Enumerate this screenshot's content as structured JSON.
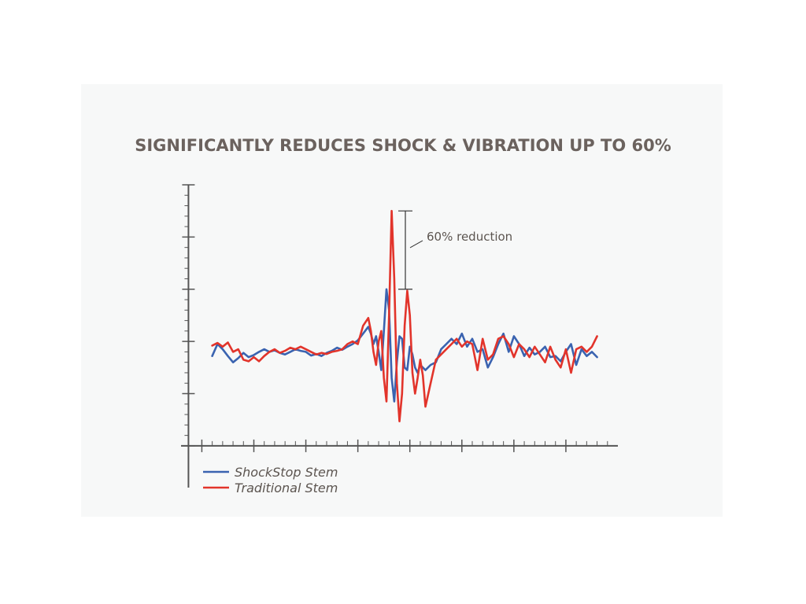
{
  "chart_data": {
    "type": "line",
    "title": "SIGNIFICANTLY REDUCES SHOCK & VIBRATION UP TO 60%",
    "annotation": "60% reduction",
    "x": [
      0.2,
      0.3,
      0.4,
      0.5,
      0.6,
      0.7,
      0.8,
      0.9,
      1.0,
      1.1,
      1.2,
      1.3,
      1.4,
      1.5,
      1.6,
      1.7,
      1.8,
      1.9,
      2.0,
      2.1,
      2.2,
      2.3,
      2.4,
      2.5,
      2.6,
      2.7,
      2.8,
      2.9,
      3.0,
      3.1,
      3.2,
      3.25,
      3.3,
      3.35,
      3.4,
      3.45,
      3.5,
      3.55,
      3.6,
      3.65,
      3.7,
      3.75,
      3.8,
      3.85,
      3.9,
      3.95,
      4.0,
      4.05,
      4.1,
      4.15,
      4.2,
      4.25,
      4.3,
      4.4,
      4.5,
      4.6,
      4.7,
      4.8,
      4.9,
      5.0,
      5.1,
      5.2,
      5.3,
      5.4,
      5.5,
      5.6,
      5.7,
      5.8,
      5.9,
      6.0,
      6.1,
      6.2,
      6.3,
      6.4,
      6.5,
      6.6,
      6.7,
      6.8,
      6.9,
      7.0,
      7.1,
      7.2,
      7.3,
      7.4,
      7.5,
      7.6
    ],
    "series": [
      {
        "name": "ShockStop Stem",
        "color": "#3a63b0",
        "values": [
          1.72,
          1.95,
          1.85,
          1.72,
          1.6,
          1.68,
          1.78,
          1.7,
          1.74,
          1.8,
          1.85,
          1.8,
          1.83,
          1.78,
          1.75,
          1.8,
          1.85,
          1.82,
          1.8,
          1.73,
          1.76,
          1.72,
          1.78,
          1.82,
          1.88,
          1.84,
          1.9,
          1.95,
          2.02,
          2.15,
          2.28,
          2.15,
          1.95,
          2.1,
          1.8,
          1.45,
          2.2,
          3.0,
          2.6,
          1.3,
          0.85,
          1.6,
          2.1,
          2.05,
          1.5,
          1.45,
          1.9,
          1.75,
          1.5,
          1.4,
          1.55,
          1.5,
          1.45,
          1.55,
          1.6,
          1.85,
          1.95,
          2.05,
          1.95,
          2.15,
          1.9,
          2.05,
          1.8,
          1.85,
          1.5,
          1.7,
          1.95,
          2.15,
          1.8,
          2.1,
          1.95,
          1.72,
          1.88,
          1.75,
          1.8,
          1.9,
          1.7,
          1.72,
          1.62,
          1.8,
          1.95,
          1.55,
          1.85,
          1.72,
          1.8,
          1.7
        ]
      },
      {
        "name": "Traditional Stem",
        "color": "#e2342b",
        "values": [
          1.92,
          1.97,
          1.9,
          1.98,
          1.8,
          1.85,
          1.65,
          1.62,
          1.7,
          1.62,
          1.72,
          1.8,
          1.85,
          1.78,
          1.82,
          1.88,
          1.85,
          1.9,
          1.85,
          1.8,
          1.75,
          1.78,
          1.76,
          1.8,
          1.82,
          1.85,
          1.95,
          2.0,
          1.95,
          2.3,
          2.45,
          2.2,
          1.8,
          1.55,
          2.0,
          2.2,
          1.3,
          0.85,
          2.5,
          4.5,
          3.2,
          1.2,
          0.47,
          1.0,
          2.3,
          2.97,
          2.5,
          1.4,
          1.0,
          1.3,
          1.65,
          1.35,
          0.75,
          1.2,
          1.65,
          1.75,
          1.85,
          1.95,
          2.05,
          1.9,
          2.0,
          1.95,
          1.45,
          2.05,
          1.65,
          1.75,
          2.05,
          2.1,
          1.95,
          1.7,
          1.95,
          1.85,
          1.7,
          1.9,
          1.75,
          1.6,
          1.9,
          1.65,
          1.5,
          1.85,
          1.4,
          1.85,
          1.9,
          1.8,
          1.9,
          2.1
        ]
      }
    ],
    "xlim": [
      -0.4,
      8
    ],
    "ylim": [
      -0.8,
      5
    ],
    "xticks": [
      0,
      1,
      2,
      3,
      4,
      5,
      6,
      7
    ],
    "yticks": [
      0,
      1,
      2,
      3,
      4,
      5
    ]
  }
}
